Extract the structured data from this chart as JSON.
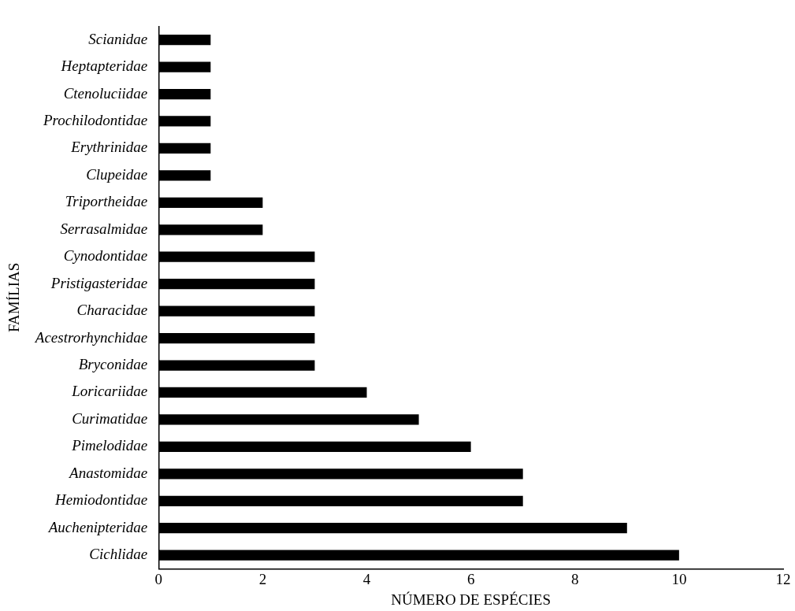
{
  "chart_data": {
    "type": "bar",
    "orientation": "horizontal",
    "xlabel": "NÚMERO DE ESPÉCIES",
    "ylabel": "FAMÍLIAS",
    "categories": [
      "Scianidae",
      "Heptapteridae",
      "Ctenoluciidae",
      "Prochilodontidae",
      "Erythrinidae",
      "Clupeidae",
      "Triportheidae",
      "Serrasalmidae",
      "Cynodontidae",
      "Pristigasteridae",
      "Characidae",
      "Acestrorhynchidae",
      "Bryconidae",
      "Loricariidae",
      "Curimatidae",
      "Pimelodidae",
      "Anastomidae",
      "Hemiodontidae",
      "Auchenipteridae",
      "Cichlidae"
    ],
    "values": [
      1,
      1,
      1,
      1,
      1,
      1,
      2,
      2,
      3,
      3,
      3,
      3,
      3,
      4,
      5,
      6,
      7,
      7,
      9,
      10
    ],
    "color": "#000000",
    "xlim": [
      0,
      12
    ],
    "xticks": [
      0,
      2,
      4,
      6,
      8,
      10,
      12
    ],
    "grid": false,
    "legend": false
  }
}
